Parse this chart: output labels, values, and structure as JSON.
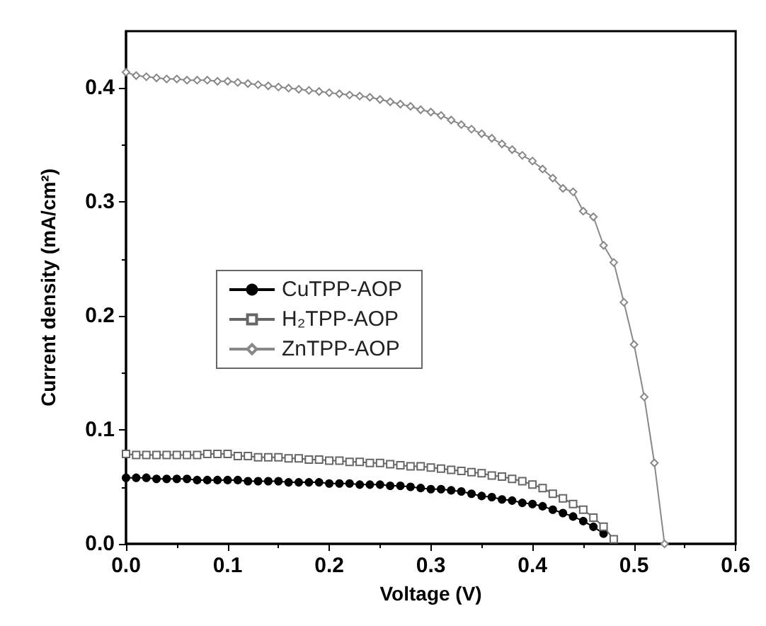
{
  "chart_data": {
    "type": "line",
    "xlabel": "Voltage (V)",
    "ylabel": "Current density (mA/cm²)",
    "x": [
      0,
      0.01,
      0.02,
      0.03,
      0.04,
      0.05,
      0.06,
      0.07,
      0.08,
      0.09,
      0.1,
      0.11,
      0.12,
      0.13,
      0.14,
      0.15,
      0.16,
      0.17,
      0.18,
      0.19,
      0.2,
      0.21,
      0.22,
      0.23,
      0.24,
      0.25,
      0.26,
      0.27,
      0.28,
      0.29,
      0.3,
      0.31,
      0.32,
      0.33,
      0.34,
      0.35,
      0.36,
      0.37,
      0.38,
      0.39,
      0.4,
      0.41,
      0.42,
      0.43,
      0.44,
      0.45,
      0.46,
      0.47,
      0.48
    ],
    "series": [
      {
        "name": "CuTPP-AOP",
        "color": "#000000",
        "marker": "circle",
        "values": [
          0.058,
          0.058,
          0.058,
          0.057,
          0.057,
          0.057,
          0.057,
          0.056,
          0.056,
          0.056,
          0.056,
          0.056,
          0.055,
          0.055,
          0.055,
          0.055,
          0.054,
          0.054,
          0.054,
          0.054,
          0.053,
          0.053,
          0.053,
          0.052,
          0.052,
          0.052,
          0.051,
          0.051,
          0.05,
          0.049,
          0.048,
          0.048,
          0.047,
          0.046,
          0.044,
          0.042,
          0.041,
          0.039,
          0.038,
          0.036,
          0.035,
          0.033,
          0.03,
          0.027,
          0.024,
          0.02,
          0.015,
          0.009,
          null
        ]
      },
      {
        "name": "H₂TPP-AOP",
        "color": "#666666",
        "marker": "square",
        "values": [
          0.079,
          0.078,
          0.078,
          0.078,
          0.078,
          0.078,
          0.078,
          0.078,
          0.079,
          0.079,
          0.079,
          0.077,
          0.077,
          0.076,
          0.076,
          0.076,
          0.075,
          0.075,
          0.074,
          0.074,
          0.073,
          0.073,
          0.072,
          0.072,
          0.071,
          0.071,
          0.07,
          0.069,
          0.068,
          0.068,
          0.067,
          0.066,
          0.065,
          0.064,
          0.063,
          0.062,
          0.06,
          0.059,
          0.057,
          0.055,
          0.052,
          0.049,
          0.044,
          0.04,
          0.035,
          0.03,
          0.023,
          0.015,
          0.004
        ]
      },
      {
        "name": "ZnTPP-AOP",
        "color": "#888888",
        "marker": "diamond",
        "x": [
          0,
          0.01,
          0.02,
          0.03,
          0.04,
          0.05,
          0.06,
          0.07,
          0.08,
          0.09,
          0.1,
          0.11,
          0.12,
          0.13,
          0.14,
          0.15,
          0.16,
          0.17,
          0.18,
          0.19,
          0.2,
          0.21,
          0.22,
          0.23,
          0.24,
          0.25,
          0.26,
          0.27,
          0.28,
          0.29,
          0.3,
          0.31,
          0.32,
          0.33,
          0.34,
          0.35,
          0.36,
          0.37,
          0.38,
          0.39,
          0.4,
          0.41,
          0.42,
          0.43,
          0.44,
          0.45,
          0.46,
          0.47,
          0.48,
          0.49,
          0.5,
          0.51,
          0.52,
          0.53
        ],
        "values": [
          0.414,
          0.411,
          0.41,
          0.409,
          0.408,
          0.408,
          0.407,
          0.407,
          0.407,
          0.406,
          0.406,
          0.405,
          0.404,
          0.403,
          0.402,
          0.401,
          0.4,
          0.399,
          0.398,
          0.397,
          0.396,
          0.395,
          0.394,
          0.393,
          0.392,
          0.39,
          0.388,
          0.386,
          0.384,
          0.381,
          0.379,
          0.376,
          0.372,
          0.368,
          0.364,
          0.36,
          0.356,
          0.351,
          0.346,
          0.341,
          0.336,
          0.329,
          0.321,
          0.312,
          0.309,
          0.292,
          0.287,
          0.262,
          0.247,
          0.212,
          0.175,
          0.129,
          0.071,
          0
        ]
      }
    ],
    "xlim": [
      0,
      0.6
    ],
    "xticks": [
      {
        "value": 0,
        "label": "0.0"
      },
      {
        "value": 0.1,
        "label": "0.1"
      },
      {
        "value": 0.2,
        "label": "0.2"
      },
      {
        "value": 0.3,
        "label": "0.3"
      },
      {
        "value": 0.4,
        "label": "0.4"
      },
      {
        "value": 0.5,
        "label": "0.5"
      },
      {
        "value": 0.6,
        "label": "0.6"
      }
    ],
    "ylim": [
      0,
      0.45
    ],
    "yticks": [
      {
        "value": 0,
        "label": "0.0"
      },
      {
        "value": 0.1,
        "label": "0.1"
      },
      {
        "value": 0.2,
        "label": "0.2"
      },
      {
        "value": 0.3,
        "label": "0.3"
      },
      {
        "value": 0.4,
        "label": "0.4"
      }
    ],
    "legend": "center left",
    "grid": false
  }
}
